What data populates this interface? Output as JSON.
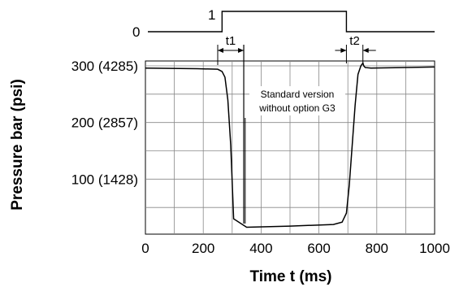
{
  "chart_data": {
    "type": "line",
    "title": "",
    "xlabel": "Time t (ms)",
    "ylabel": "Pressure bar (psi)",
    "xlim": [
      0,
      1000
    ],
    "ylim": [
      0,
      300
    ],
    "grid": true,
    "x_ticks": [
      {
        "value": 0,
        "label": "0"
      },
      {
        "value": 200,
        "label": "200"
      },
      {
        "value": 400,
        "label": "400"
      },
      {
        "value": 600,
        "label": "600"
      },
      {
        "value": 800,
        "label": "800"
      },
      {
        "value": 1000,
        "label": "1000"
      }
    ],
    "y_ticks": [
      {
        "value": 100,
        "label": "100 (1428)"
      },
      {
        "value": 200,
        "label": "200 (2857)"
      },
      {
        "value": 300,
        "label": "300 (4285)"
      }
    ],
    "series": [
      {
        "name": "",
        "x": [
          0,
          180,
          250,
          265,
          275,
          285,
          295,
          305,
          350,
          500,
          650,
          680,
          695,
          705,
          715,
          725,
          735,
          745,
          752,
          755,
          760,
          780,
          1000
        ],
        "y": [
          296,
          295,
          294,
          290,
          280,
          240,
          160,
          30,
          15,
          17,
          20,
          24,
          40,
          90,
          160,
          230,
          285,
          300,
          305,
          300,
          297,
          296,
          298
        ]
      }
    ],
    "control_signal": {
      "low_label": "0",
      "high_label": "1",
      "on_x": 265,
      "off_x": 695
    },
    "annotations": {
      "t1_label": "t1",
      "t2_label": "t2",
      "t1_range": [
        250,
        340
      ],
      "t2_range": [
        695,
        752
      ],
      "note_line1": "Standard version",
      "note_line2": "without option G3",
      "note_pointer_x": 345
    }
  }
}
